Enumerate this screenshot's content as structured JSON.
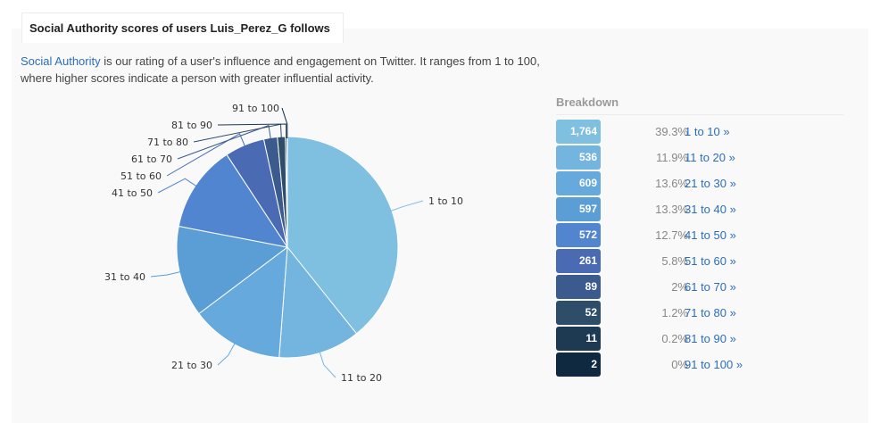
{
  "header": {
    "title": "Social Authority scores of users Luis_Perez_G follows"
  },
  "description": {
    "link_text": "Social Authority",
    "text": " is our rating of a user's influence and engagement on Twitter. It ranges from 1 to 100, where higher scores indicate a person with greater influential activity."
  },
  "breakdown": {
    "title": "Breakdown",
    "rows": [
      {
        "count": "1,764",
        "percent": "39.3%",
        "label": "1 to 10 »",
        "color": "#7fbfe0"
      },
      {
        "count": "536",
        "percent": "11.9%",
        "label": "11 to 20 »",
        "color": "#73b5df"
      },
      {
        "count": "609",
        "percent": "13.6%",
        "label": "21 to 30 »",
        "color": "#66a9dc"
      },
      {
        "count": "597",
        "percent": "13.3%",
        "label": "31 to 40 »",
        "color": "#5b9dd5"
      },
      {
        "count": "572",
        "percent": "12.7%",
        "label": "41 to 50 »",
        "color": "#5285d0"
      },
      {
        "count": "261",
        "percent": "5.8%",
        "label": "51 to 60 »",
        "color": "#4a6bb4"
      },
      {
        "count": "89",
        "percent": "2%",
        "label": "61 to 70 »",
        "color": "#3b5a8d"
      },
      {
        "count": "52",
        "percent": "1.2%",
        "label": "71 to 80 »",
        "color": "#2e4d68"
      },
      {
        "count": "11",
        "percent": "0.2%",
        "label": "81 to 90 »",
        "color": "#1d3a52"
      },
      {
        "count": "2",
        "percent": "0%",
        "label": "91 to 100 »",
        "color": "#0f2a40"
      }
    ]
  },
  "chart_data": {
    "type": "pie",
    "categories": [
      "1 to 10",
      "11 to 20",
      "21 to 30",
      "31 to 40",
      "41 to 50",
      "51 to 60",
      "61 to 70",
      "71 to 80",
      "81 to 90",
      "91 to 100"
    ],
    "values": [
      1764,
      536,
      609,
      597,
      572,
      261,
      89,
      52,
      11,
      2
    ],
    "colors": [
      "#7fbfe0",
      "#73b5df",
      "#66a9dc",
      "#5b9dd5",
      "#5285d0",
      "#4a6bb4",
      "#3b5a8d",
      "#2e4d68",
      "#1d3a52",
      "#0f2a40"
    ],
    "title": "",
    "legend": "none"
  }
}
